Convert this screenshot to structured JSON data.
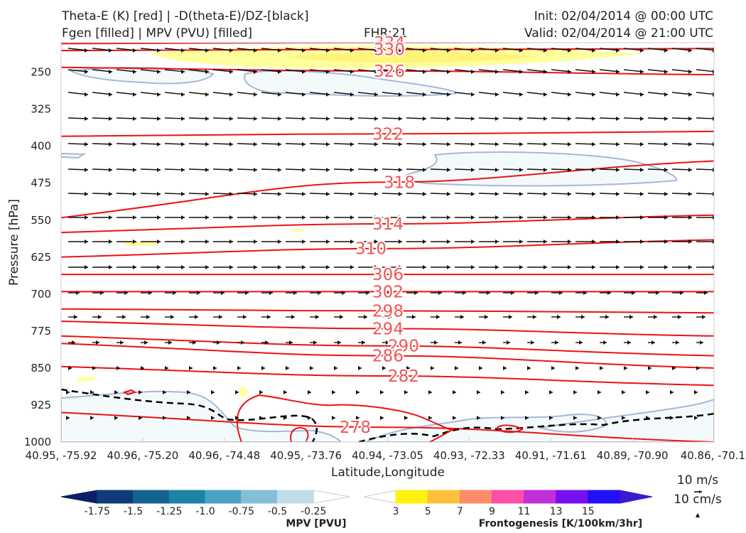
{
  "header": {
    "title_line1": "Theta-E (K) [red] | -D(theta-E)/DZ-[black]",
    "title_line2": "Fgen [filled] | MPV (PVU) [filled]",
    "fhr": "FHR:21",
    "init": "Init: 02/04/2014 @ 00:00 UTC",
    "valid": "Valid: 02/04/2014 @ 21:00 UTC"
  },
  "chart_data": {
    "type": "cross-section",
    "xlabel": "Latitude,Longitude",
    "ylabel": "Pressure [hPa]",
    "x_ticks": [
      "40.95, -75.92",
      "40.96, -75.20",
      "40.96, -74.48",
      "40.95, -73.76",
      "40.94, -73.05",
      "40.93, -72.33",
      "40.91, -71.61",
      "40.89, -70.90",
      "40.86, -70.1"
    ],
    "y_ticks": [
      250,
      325,
      400,
      475,
      550,
      625,
      700,
      775,
      850,
      925,
      1000
    ],
    "ylim": [
      190,
      1000
    ],
    "y_inverted": true,
    "theta_e_contours": [
      {
        "label": "334",
        "p_left": 192,
        "p_right": 188
      },
      {
        "label": "330",
        "p_left": 206,
        "p_right": 202
      },
      {
        "label": "326",
        "p_left": 240,
        "p_right": 255
      },
      {
        "label": "322",
        "p_left": 380,
        "p_right": 370
      },
      {
        "label": "318",
        "p_left": 545,
        "p_right": 430
      },
      {
        "label": "314",
        "p_left": 575,
        "p_right": 540
      },
      {
        "label": "310",
        "p_left": 625,
        "p_right": 590
      },
      {
        "label": "306",
        "p_left": 660,
        "p_right": 660
      },
      {
        "label": "302",
        "p_left": 695,
        "p_right": 695
      },
      {
        "label": "298",
        "p_left": 730,
        "p_right": 738
      },
      {
        "label": "294",
        "p_left": 755,
        "p_right": 785
      },
      {
        "label": "290",
        "p_left": 785,
        "p_right": 825
      },
      {
        "label": "286",
        "p_left": 800,
        "p_right": 850
      },
      {
        "label": "282",
        "p_left": 847,
        "p_right": 885
      },
      {
        "label": "278",
        "p_left": 940,
        "p_right": 1000
      }
    ],
    "wind_legend": {
      "horizontal": "10 m/s",
      "vertical": "10 cm/s"
    },
    "mpv_colorbar": {
      "label": "MPV [PVU]",
      "ticks": [
        "-1.75",
        "-1.5",
        "-1.25",
        "-1.0",
        "-0.75",
        "-0.5",
        "-0.25"
      ],
      "colors": [
        "#0a1f64",
        "#0f3c78",
        "#13628f",
        "#1d82a6",
        "#4ba3c3",
        "#86bed6",
        "#c0dde9",
        "#ffffff"
      ]
    },
    "fgen_colorbar": {
      "label": "Frontogenesis [K/100km/3hr]",
      "ticks": [
        "3",
        "5",
        "7",
        "9",
        "11",
        "13",
        "15"
      ],
      "colors": [
        "#ffffff",
        "#fff20e",
        "#fec03a",
        "#fe8b6a",
        "#fc4fa5",
        "#c12fd8",
        "#7710ef",
        "#2211f5",
        "#3a1bd0"
      ]
    },
    "grid": false
  }
}
